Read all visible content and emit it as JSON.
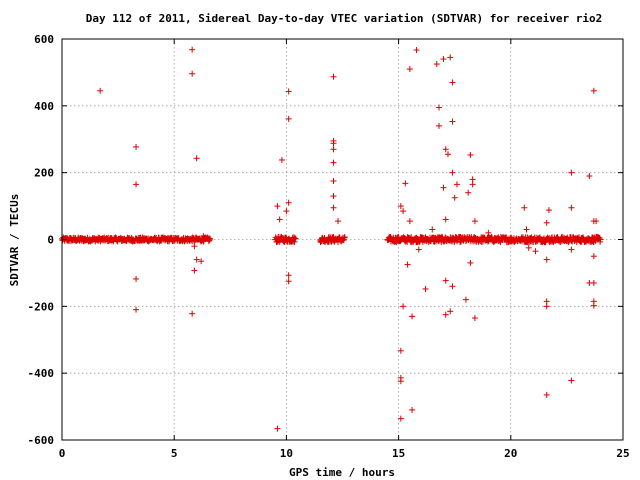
{
  "chart_data": {
    "type": "scatter",
    "title": "Day 112 of 2011, Sidereal Day-to-day VTEC variation (SDTVAR) for receiver rio2",
    "xlabel": "GPS time / hours",
    "ylabel": "SDTVAR / TECUs",
    "xlim": [
      0,
      25
    ],
    "ylim": [
      -600,
      600
    ],
    "xticks": [
      "0",
      "5",
      "10",
      "15",
      "20",
      "25"
    ],
    "yticks": [
      "600",
      "400",
      "200",
      "0",
      "-200",
      "-400",
      "-600"
    ],
    "grid": true,
    "marker": "plus",
    "color": "#dd0000",
    "dense_bands": [
      {
        "x_start": 0.0,
        "x_end": 6.6,
        "y_spread": 6
      },
      {
        "x_start": 9.5,
        "x_end": 10.4,
        "y_spread": 8
      },
      {
        "x_start": 11.5,
        "x_end": 12.6,
        "y_spread": 8
      },
      {
        "x_start": 14.5,
        "x_end": 24.0,
        "y_spread": 8
      }
    ],
    "points": [
      [
        1.7,
        445
      ],
      [
        3.3,
        277
      ],
      [
        3.3,
        165
      ],
      [
        3.3,
        -118
      ],
      [
        3.3,
        -210
      ],
      [
        5.8,
        568
      ],
      [
        5.8,
        496
      ],
      [
        5.9,
        -93
      ],
      [
        5.8,
        -222
      ],
      [
        6.0,
        243
      ],
      [
        6.0,
        -60
      ],
      [
        6.2,
        -65
      ],
      [
        6.3,
        10
      ],
      [
        5.9,
        -20
      ],
      [
        9.6,
        -566
      ],
      [
        9.6,
        100
      ],
      [
        9.7,
        60
      ],
      [
        9.8,
        238
      ],
      [
        10.1,
        443
      ],
      [
        10.1,
        361
      ],
      [
        10.1,
        110
      ],
      [
        10.1,
        -107
      ],
      [
        10.1,
        -125
      ],
      [
        10.0,
        85
      ],
      [
        12.1,
        487
      ],
      [
        12.1,
        295
      ],
      [
        12.1,
        288
      ],
      [
        12.1,
        270
      ],
      [
        12.1,
        230
      ],
      [
        12.1,
        175
      ],
      [
        12.1,
        130
      ],
      [
        12.1,
        95
      ],
      [
        12.3,
        55
      ],
      [
        15.1,
        -536
      ],
      [
        15.1,
        -414
      ],
      [
        15.1,
        -424
      ],
      [
        15.1,
        -333
      ],
      [
        15.2,
        -200
      ],
      [
        15.1,
        100
      ],
      [
        15.2,
        85
      ],
      [
        15.3,
        168
      ],
      [
        15.4,
        -75
      ],
      [
        15.5,
        510
      ],
      [
        15.5,
        55
      ],
      [
        15.6,
        -230
      ],
      [
        15.6,
        -510
      ],
      [
        15.8,
        567
      ],
      [
        16.2,
        -148
      ],
      [
        16.7,
        525
      ],
      [
        16.8,
        395
      ],
      [
        16.8,
        340
      ],
      [
        17.0,
        540
      ],
      [
        17.1,
        270
      ],
      [
        17.2,
        255
      ],
      [
        17.0,
        155
      ],
      [
        17.1,
        60
      ],
      [
        17.1,
        -123
      ],
      [
        17.1,
        -225
      ],
      [
        17.3,
        545
      ],
      [
        17.4,
        470
      ],
      [
        17.4,
        353
      ],
      [
        17.4,
        200
      ],
      [
        17.5,
        125
      ],
      [
        17.4,
        -140
      ],
      [
        17.3,
        -215
      ],
      [
        17.6,
        165
      ],
      [
        18.0,
        -180
      ],
      [
        18.1,
        140
      ],
      [
        18.2,
        253
      ],
      [
        18.3,
        180
      ],
      [
        18.3,
        165
      ],
      [
        18.2,
        -70
      ],
      [
        18.4,
        -235
      ],
      [
        18.4,
        55
      ],
      [
        20.6,
        95
      ],
      [
        20.7,
        30
      ],
      [
        20.8,
        -25
      ],
      [
        21.1,
        -35
      ],
      [
        21.6,
        50
      ],
      [
        21.7,
        88
      ],
      [
        21.6,
        -60
      ],
      [
        21.6,
        -185
      ],
      [
        21.6,
        -200
      ],
      [
        21.6,
        -465
      ],
      [
        22.7,
        200
      ],
      [
        22.7,
        95
      ],
      [
        22.7,
        -30
      ],
      [
        22.7,
        -422
      ],
      [
        23.5,
        190
      ],
      [
        23.5,
        -130
      ],
      [
        23.7,
        445
      ],
      [
        23.7,
        55
      ],
      [
        23.8,
        55
      ],
      [
        23.7,
        -50
      ],
      [
        23.7,
        -130
      ],
      [
        23.7,
        -185
      ],
      [
        23.7,
        -198
      ],
      [
        16.5,
        30
      ],
      [
        19.0,
        20
      ],
      [
        15.9,
        -30
      ]
    ]
  }
}
